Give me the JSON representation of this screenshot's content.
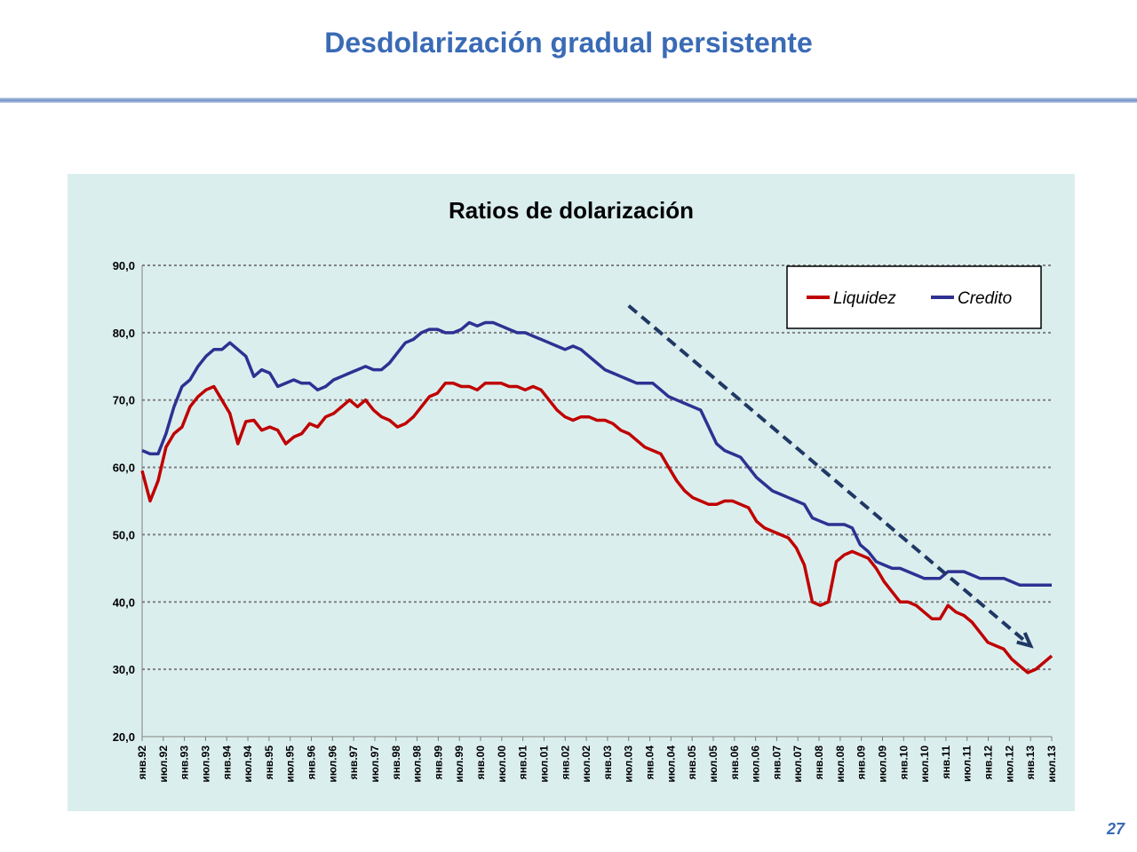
{
  "slide": {
    "title": "Desdolarización gradual persistente",
    "page_number": "27"
  },
  "colors": {
    "title": "#3a6bb5",
    "panel_bg": "#dbeeee",
    "liquidez": "#c00000",
    "credito": "#2e3192",
    "trend_arrow": "#1f3864"
  },
  "chart_data": {
    "type": "line",
    "title": "Ratios de dolarización",
    "xlabel": "",
    "ylabel": "",
    "ylim": [
      20,
      90
    ],
    "yticks": [
      "20,0",
      "30,0",
      "40,0",
      "50,0",
      "60,0",
      "70,0",
      "80,0",
      "90,0"
    ],
    "grid": true,
    "legend_position": "top-right",
    "x_tick_labels": [
      "янв.92",
      "июл.92",
      "янв.93",
      "июл.93",
      "янв.94",
      "июл.94",
      "янв.95",
      "июл.95",
      "янв.96",
      "июл.96",
      "янв.97",
      "июл.97",
      "янв.98",
      "июл.98",
      "янв.99",
      "июл.99",
      "янв.00",
      "июл.00",
      "янв.01",
      "июл.01",
      "янв.02",
      "июл.02",
      "янв.03",
      "июл.03",
      "янв.04",
      "июл.04",
      "янв.05",
      "июл.05",
      "янв.06",
      "июл.06",
      "янв.07",
      "июл.07",
      "янв.08",
      "июл.08",
      "янв.09",
      "июл.09",
      "янв.10",
      "июл.10",
      "янв.11",
      "июл.11",
      "янв.12",
      "июл.12",
      "янв.13",
      "июл.13"
    ],
    "series": [
      {
        "name": "Liquidez",
        "color": "#c00000",
        "values": [
          59.5,
          55.0,
          58.0,
          63.0,
          65.0,
          66.0,
          69.0,
          70.5,
          71.5,
          72.0,
          70.0,
          68.0,
          63.5,
          66.8,
          67.0,
          65.5,
          66.0,
          65.5,
          63.5,
          64.5,
          65.0,
          66.5,
          66.0,
          67.5,
          68.0,
          69.0,
          70.0,
          69.0,
          70.0,
          68.5,
          67.5,
          67.0,
          66.0,
          66.5,
          67.5,
          69.0,
          70.5,
          71.0,
          72.5,
          72.5,
          72.0,
          72.0,
          71.5,
          72.5,
          72.5,
          72.5,
          72.0,
          72.0,
          71.5,
          72.0,
          71.5,
          70.0,
          68.5,
          67.5,
          67.0,
          67.5,
          67.5,
          67.0,
          67.0,
          66.5,
          65.5,
          65.0,
          64.0,
          63.0,
          62.5,
          62.0,
          60.0,
          58.0,
          56.5,
          55.5,
          55.0,
          54.5,
          54.5,
          55.0,
          55.0,
          54.5,
          54.0,
          52.0,
          51.0,
          50.5,
          50.0,
          49.5,
          48.0,
          45.5,
          40.0,
          39.5,
          40.0,
          46.0,
          47.0,
          47.5,
          47.0,
          46.5,
          45.0,
          43.0,
          41.5,
          40.0,
          40.0,
          39.5,
          38.5,
          37.5,
          37.5,
          39.5,
          38.5,
          38.0,
          37.0,
          35.5,
          34.0,
          33.5,
          33.0,
          31.5,
          30.5,
          29.5,
          30.0,
          31.0,
          32.0
        ]
      },
      {
        "name": "Credito",
        "color": "#2e3192",
        "values": [
          62.5,
          62.0,
          62.0,
          65.0,
          69.0,
          72.0,
          73.0,
          75.0,
          76.5,
          77.5,
          77.5,
          78.5,
          77.5,
          76.5,
          73.5,
          74.5,
          74.0,
          72.0,
          72.5,
          73.0,
          72.5,
          72.5,
          71.5,
          72.0,
          73.0,
          73.5,
          74.0,
          74.5,
          75.0,
          74.5,
          74.5,
          75.5,
          77.0,
          78.5,
          79.0,
          80.0,
          80.5,
          80.5,
          80.0,
          80.0,
          80.5,
          81.5,
          81.0,
          81.5,
          81.5,
          81.0,
          80.5,
          80.0,
          80.0,
          79.5,
          79.0,
          78.5,
          78.0,
          77.5,
          78.0,
          77.5,
          76.5,
          75.5,
          74.5,
          74.0,
          73.5,
          73.0,
          72.5,
          72.5,
          72.5,
          71.5,
          70.5,
          70.0,
          69.5,
          69.0,
          68.5,
          66.0,
          63.5,
          62.5,
          62.0,
          61.5,
          60.0,
          58.5,
          57.5,
          56.5,
          56.0,
          55.5,
          55.0,
          54.5,
          52.5,
          52.0,
          51.5,
          51.5,
          51.5,
          51.0,
          48.5,
          47.5,
          46.0,
          45.5,
          45.0,
          45.0,
          44.5,
          44.0,
          43.5,
          43.5,
          43.5,
          44.5,
          44.5,
          44.5,
          44.0,
          43.5,
          43.5,
          43.5,
          43.5,
          43.0,
          42.5,
          42.5,
          42.5,
          42.5,
          42.5
        ]
      }
    ],
    "annotations": [
      {
        "type": "dashed-arrow",
        "description": "downward trend",
        "from": [
          "июл.03",
          84
        ],
        "to": [
          "янв.13",
          33.5
        ]
      }
    ]
  }
}
